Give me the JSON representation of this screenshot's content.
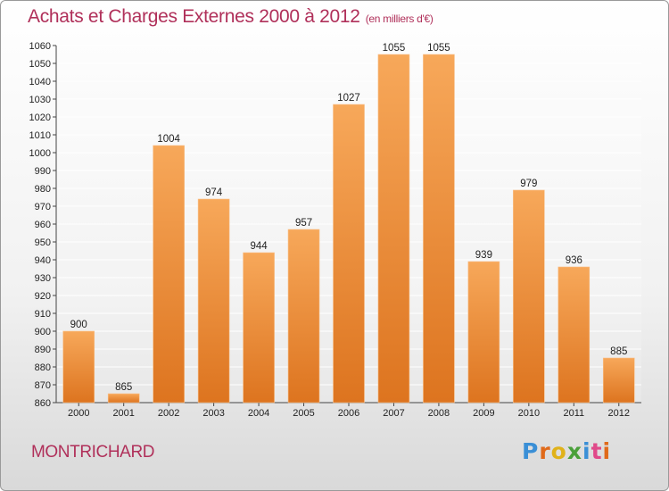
{
  "title": "Achats et Charges Externes 2000 à 2012",
  "unit_note": "(en milliers d'€)",
  "city": "MONTRICHARD",
  "logo": {
    "text": "Proxiti",
    "letters": [
      {
        "ch": "P",
        "color": "#3a8fd6"
      },
      {
        "ch": "r",
        "color": "#e06a1a"
      },
      {
        "ch": "o",
        "color": "#e0b21a"
      },
      {
        "ch": "x",
        "color": "#4aa03a"
      },
      {
        "ch": "i",
        "color": "#3a8fd6"
      },
      {
        "ch": "t",
        "color": "#e04a8a"
      },
      {
        "ch": "i",
        "color": "#e06a1a"
      }
    ]
  },
  "colors": {
    "accent": "#b0305a",
    "bar_top": "#f7a85a",
    "bar_bottom": "#dd741f",
    "grid": "#ffffff"
  },
  "chart_data": {
    "type": "bar",
    "title": "Achats et Charges Externes 2000 à 2012",
    "subtitle": "(en milliers d'€)",
    "xlabel": "",
    "ylabel": "",
    "categories": [
      "2000",
      "2001",
      "2002",
      "2003",
      "2004",
      "2005",
      "2006",
      "2007",
      "2008",
      "2009",
      "2010",
      "2011",
      "2012"
    ],
    "values": [
      900,
      865,
      1004,
      974,
      944,
      957,
      1027,
      1055,
      1055,
      939,
      979,
      936,
      885
    ],
    "ylim": [
      860,
      1060
    ],
    "ytick_step": 10,
    "grid": true,
    "legend": "none"
  }
}
